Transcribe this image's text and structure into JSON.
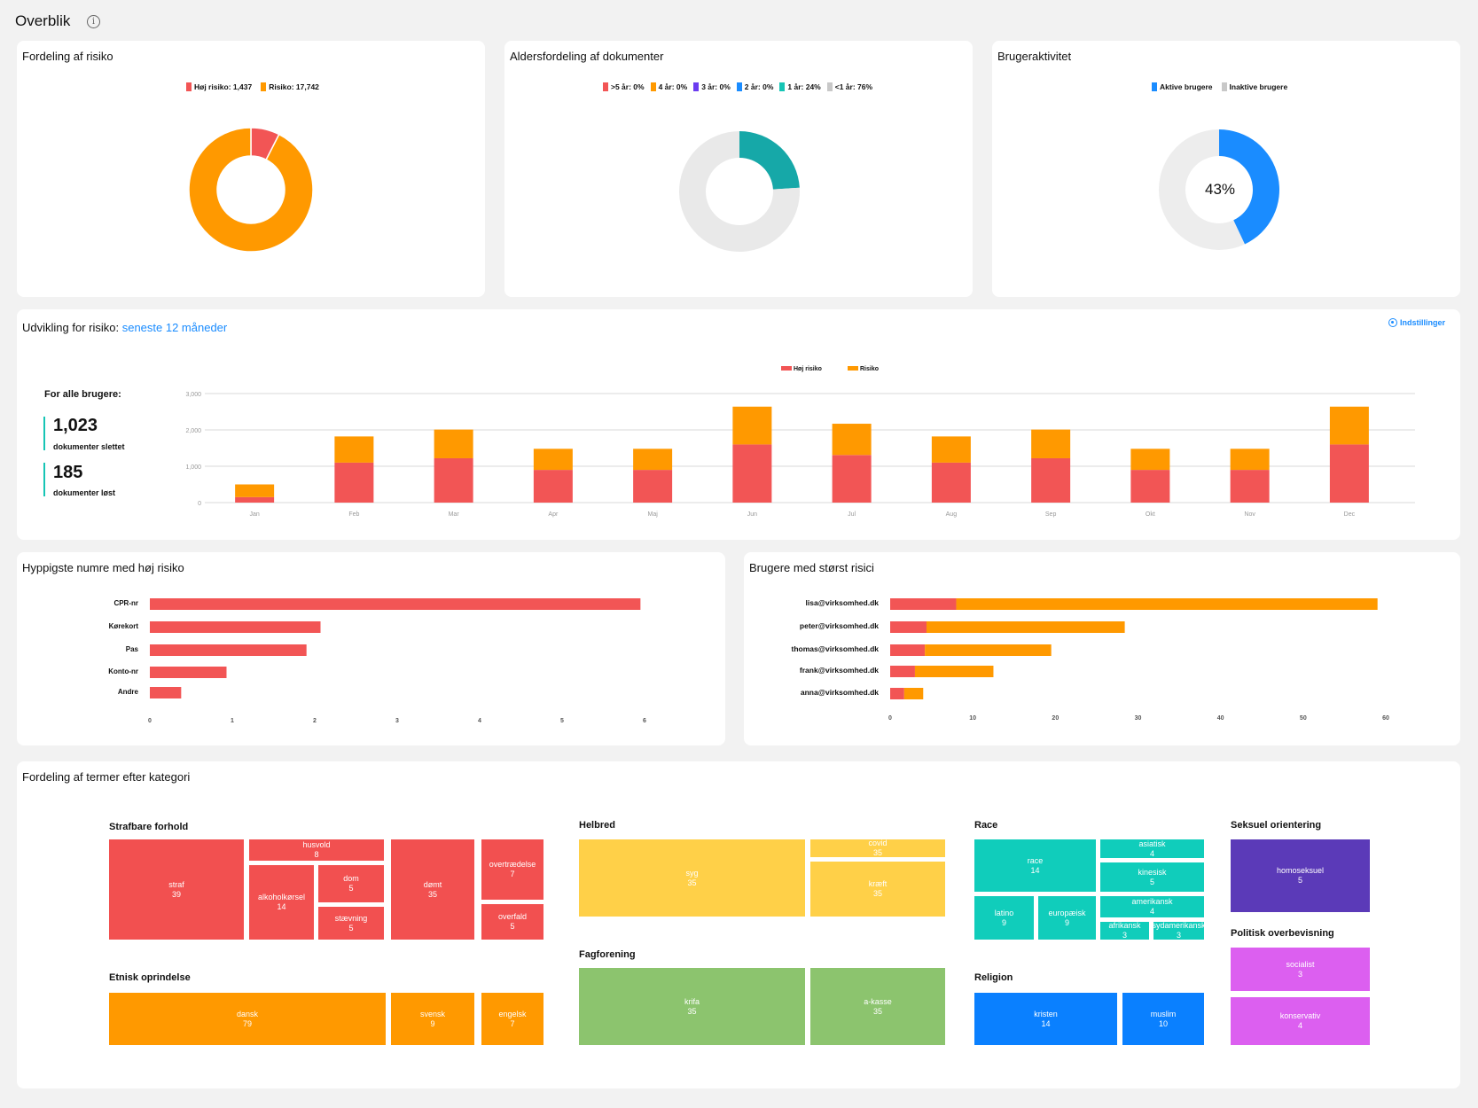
{
  "page": {
    "title": "Overblik"
  },
  "risk_distribution": {
    "title": "Fordeling af risiko",
    "legend": [
      {
        "label": "Høj risiko: 1,437",
        "color": "#f25555"
      },
      {
        "label": "Risiko: 17,742",
        "color": "#ff9900"
      }
    ]
  },
  "age_distribution": {
    "title": "Aldersfordeling af dokumenter",
    "legend": [
      {
        "label": ">5 år: 0%",
        "color": "#f25555"
      },
      {
        "label": "4 år: 0%",
        "color": "#ff9900"
      },
      {
        "label": "3 år: 0%",
        "color": "#6b3cf0"
      },
      {
        "label": "2 år: 0%",
        "color": "#1a8cff"
      },
      {
        "label": "1 år: 24%",
        "color": "#16c5b5"
      },
      {
        "label": "<1 år: 76%",
        "color": "#c8c8c8"
      }
    ]
  },
  "user_activity": {
    "title": "Brugeraktivitet",
    "center": "43%",
    "legend": [
      {
        "label": "Aktive brugere",
        "color": "#1a8cff"
      },
      {
        "label": "Inaktive brugere",
        "color": "#c8c8c8"
      }
    ]
  },
  "trend": {
    "title_prefix": "Udvikling for risiko:",
    "title_link": "seneste 12 måneder",
    "settings_label": "Indstillinger",
    "stats_heading": "For alle brugere:",
    "stats": [
      {
        "value": "1,023",
        "label": "dokumenter slettet"
      },
      {
        "value": "185",
        "label": "dokumenter løst"
      }
    ]
  },
  "top_numbers": {
    "title": "Hyppigste numre med høj risiko"
  },
  "top_users": {
    "title": "Brugere med størst risici"
  },
  "terms": {
    "title": "Fordeling af termer efter kategori",
    "groups": [
      {
        "title": "Strafbare forhold",
        "cells": [
          {
            "label": "straf",
            "value": "39"
          },
          {
            "label": "husvold",
            "value": "8"
          },
          {
            "label": "alkoholkørsel",
            "value": "14"
          },
          {
            "label": "dom",
            "value": "5"
          },
          {
            "label": "stævning",
            "value": "5"
          },
          {
            "label": "dømt",
            "value": "35"
          },
          {
            "label": "overtrædelse",
            "value": "7"
          },
          {
            "label": "overfald",
            "value": "5"
          }
        ]
      },
      {
        "title": "Etnisk oprindelse",
        "cells": [
          {
            "label": "dansk",
            "value": "79"
          },
          {
            "label": "svensk",
            "value": "9"
          },
          {
            "label": "engelsk",
            "value": "7"
          }
        ]
      },
      {
        "title": "Helbred",
        "cells": [
          {
            "label": "syg",
            "value": "35"
          },
          {
            "label": "covid",
            "value": "35"
          },
          {
            "label": "kræft",
            "value": "35"
          }
        ]
      },
      {
        "title": "Fagforening",
        "cells": [
          {
            "label": "krifa",
            "value": "35"
          },
          {
            "label": "a-kasse",
            "value": "35"
          }
        ]
      },
      {
        "title": "Race",
        "cells": [
          {
            "label": "race",
            "value": "14"
          },
          {
            "label": "asiatisk",
            "value": "4"
          },
          {
            "label": "kinesisk",
            "value": "5"
          },
          {
            "label": "latino",
            "value": "9"
          },
          {
            "label": "europæisk",
            "value": "9"
          },
          {
            "label": "amerikansk",
            "value": "4"
          },
          {
            "label": "afrikansk",
            "value": "3"
          },
          {
            "label": "sydamerikansk",
            "value": "3"
          }
        ]
      },
      {
        "title": "Religion",
        "cells": [
          {
            "label": "kristen",
            "value": "14"
          },
          {
            "label": "muslim",
            "value": "10"
          }
        ]
      },
      {
        "title": "Seksuel orientering",
        "cells": [
          {
            "label": "homoseksuel",
            "value": "5"
          }
        ]
      },
      {
        "title": "Politisk overbevisning",
        "cells": [
          {
            "label": "socialist",
            "value": "3"
          },
          {
            "label": "konservativ",
            "value": "4"
          }
        ]
      }
    ]
  },
  "chart_data": [
    {
      "type": "pie",
      "title": "Fordeling af risiko",
      "labels": [
        "Høj risiko",
        "Risiko"
      ],
      "values": [
        1437,
        17742
      ],
      "colors": [
        "#f25555",
        "#ff9900"
      ],
      "style": "donut"
    },
    {
      "type": "pie",
      "title": "Aldersfordeling af dokumenter",
      "labels": [
        ">5 år",
        "4 år",
        "3 år",
        "2 år",
        "1 år",
        "<1 år"
      ],
      "values": [
        0,
        0,
        0,
        0,
        24,
        76
      ],
      "colors": [
        "#f25555",
        "#ff9900",
        "#6b3cf0",
        "#1a8cff",
        "#16a8a8",
        "#e9e9e9"
      ],
      "style": "donut"
    },
    {
      "type": "pie",
      "title": "Brugeraktivitet",
      "labels": [
        "Aktive brugere",
        "Inaktive brugere"
      ],
      "values": [
        43,
        57
      ],
      "colors": [
        "#1a8cff",
        "#ededed"
      ],
      "style": "donut"
    },
    {
      "type": "bar",
      "stacked": true,
      "categories": [
        "Jan",
        "Feb",
        "Mar",
        "Apr",
        "Maj",
        "Jun",
        "Jul",
        "Aug",
        "Sep",
        "Okt",
        "Nov",
        "Dec"
      ],
      "series": [
        {
          "name": "Høj risiko",
          "color": "#f25555",
          "values": [
            150,
            1100,
            1220,
            900,
            900,
            1600,
            1310,
            1100,
            1220,
            900,
            900,
            1600
          ]
        },
        {
          "name": "Risiko",
          "color": "#ff9900",
          "values": [
            350,
            720,
            790,
            580,
            580,
            1040,
            860,
            720,
            790,
            580,
            580,
            1040
          ]
        }
      ],
      "yticks": [
        "0",
        "1,000",
        "2,000",
        "3,000"
      ],
      "ylim": [
        0,
        3000
      ],
      "legend": "top-center",
      "grid": true
    },
    {
      "type": "bar",
      "orientation": "horizontal",
      "title": "Hyppigste numre med høj risiko",
      "categories": [
        "CPR-nr",
        "Kørekort",
        "Pas",
        "Konto-nr",
        "Andre"
      ],
      "values": [
        5.95,
        2.07,
        1.9,
        0.93,
        0.38
      ],
      "color": "#f25555",
      "xticks": [
        "0",
        "1",
        "2",
        "3",
        "4",
        "5",
        "6"
      ],
      "xlim": [
        0,
        6
      ]
    },
    {
      "type": "bar",
      "orientation": "horizontal",
      "stacked": true,
      "title": "Brugere med størst risici",
      "categories": [
        "lisa@virksomhed.dk",
        "peter@virksomhed.dk",
        "thomas@virksomhed.dk",
        "frank@virksomhed.dk",
        "anna@virksomhed.dk"
      ],
      "series": [
        {
          "name": "Høj risiko",
          "color": "#f25555",
          "values": [
            8,
            4.4,
            4.2,
            3,
            1.7
          ]
        },
        {
          "name": "Risiko",
          "color": "#ff9900",
          "values": [
            51,
            24,
            15.3,
            9.5,
            2.3
          ]
        }
      ],
      "xticks": [
        "0",
        "10",
        "20",
        "30",
        "40",
        "50",
        "60"
      ],
      "xlim": [
        0,
        60
      ]
    }
  ]
}
